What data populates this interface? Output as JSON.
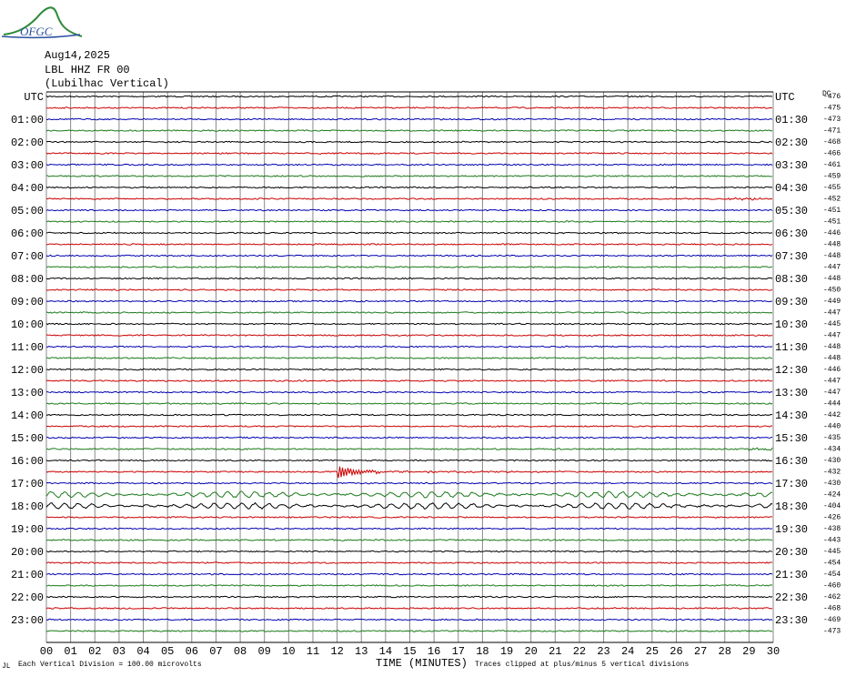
{
  "header": {
    "logo": "OFGC",
    "date": "Aug14,2025",
    "station": "LBL HHZ FR 00",
    "location": "(Lubilhac Vertical)",
    "dc_label": "DC"
  },
  "left_labels": [
    "UTC",
    "01:00",
    "02:00",
    "03:00",
    "04:00",
    "05:00",
    "06:00",
    "07:00",
    "08:00",
    "09:00",
    "10:00",
    "11:00",
    "12:00",
    "13:00",
    "14:00",
    "15:00",
    "16:00",
    "17:00",
    "18:00",
    "19:00",
    "20:00",
    "21:00",
    "22:00",
    "23:00"
  ],
  "right_labels": [
    "UTC",
    "01:30",
    "02:30",
    "03:30",
    "04:30",
    "05:30",
    "06:30",
    "07:30",
    "08:30",
    "09:30",
    "10:30",
    "11:30",
    "12:30",
    "13:30",
    "14:30",
    "15:30",
    "16:30",
    "17:30",
    "18:30",
    "19:30",
    "20:30",
    "21:30",
    "22:30",
    "23:30"
  ],
  "dc_offsets": [
    "-476",
    "-475",
    "-473",
    "-471",
    "-468",
    "-466",
    "-461",
    "-459",
    "-455",
    "-452",
    "-451",
    "-451",
    "-446",
    "-448",
    "-448",
    "-447",
    "-448",
    "-450",
    "-449",
    "-447",
    "-445",
    "-447",
    "-448",
    "-448",
    "-446",
    "-447",
    "-447",
    "-444",
    "-442",
    "-440",
    "-435",
    "-434",
    "-430",
    "-432",
    "-430",
    "-424",
    "-404",
    "-426",
    "-438",
    "-443",
    "-445",
    "-454",
    "-454",
    "-460",
    "-462",
    "-468",
    "-469",
    "-473"
  ],
  "x_ticks": [
    "00",
    "01",
    "02",
    "03",
    "04",
    "05",
    "06",
    "07",
    "08",
    "09",
    "10",
    "11",
    "12",
    "13",
    "14",
    "15",
    "16",
    "17",
    "18",
    "19",
    "20",
    "21",
    "22",
    "23",
    "24",
    "25",
    "26",
    "27",
    "28",
    "29",
    "30"
  ],
  "footer": {
    "corner": "JL",
    "scale_note": "Each Vertical Division =  100.00 microvolts",
    "x_label": "TIME (MINUTES)",
    "clip_note": "Traces clipped at plus/minus 5 vertical divisions"
  }
}
